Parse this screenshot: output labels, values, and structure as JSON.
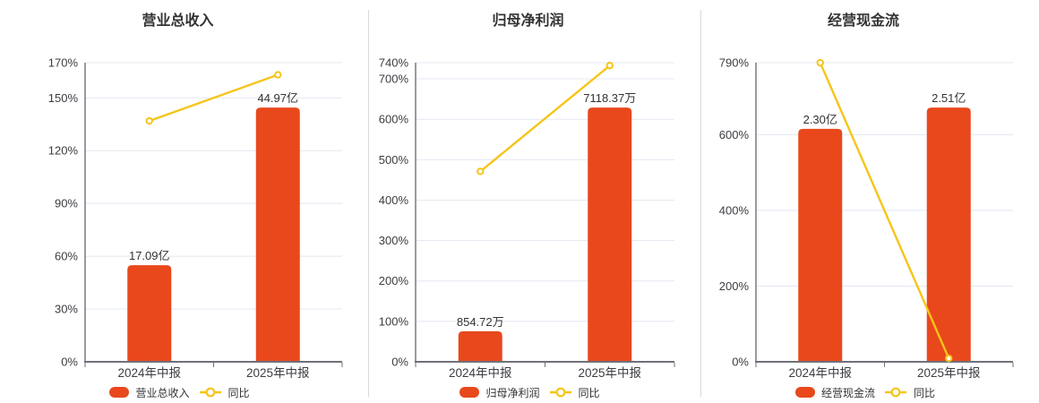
{
  "colors": {
    "bar": "#e8481c",
    "line": "#f5c518",
    "grid": "#e3e8f0",
    "axis": "#70707a",
    "tick_text": "#3c3c42",
    "label_text": "#333333",
    "title_text": "#333333",
    "divider": "#d9d9d9",
    "marker_fill": "#ffffff"
  },
  "chart_data": [
    {
      "type": "bar",
      "title": "营业总收入",
      "categories": [
        "2024年中报",
        "2025年中报"
      ],
      "bars": {
        "name": "营业总收入",
        "values": [
          17.09,
          44.97
        ],
        "labels": [
          "17.09亿",
          "44.97亿"
        ],
        "unit": "亿",
        "color": "#e8481c"
      },
      "line": {
        "name": "同比",
        "values": [
          136.9,
          163.1
        ],
        "unit": "%",
        "color": "#f5c518"
      },
      "y_axis": {
        "tick_values": [
          0,
          30,
          60,
          90,
          120,
          150,
          170
        ],
        "unit": "%",
        "min": 0,
        "max": 170
      },
      "legend": [
        "营业总收入",
        "同比"
      ],
      "grid_on": true,
      "legend_position": "bottom"
    },
    {
      "type": "bar",
      "title": "归母净利润",
      "categories": [
        "2024年中报",
        "2025年中报"
      ],
      "bars": {
        "name": "归母净利润",
        "values": [
          854.72,
          7118.37
        ],
        "labels": [
          "854.72万",
          "7118.37万"
        ],
        "unit": "万",
        "color": "#e8481c"
      },
      "line": {
        "name": "同比",
        "values": [
          471.0,
          732.8
        ],
        "unit": "%",
        "color": "#f5c518"
      },
      "y_axis": {
        "tick_values": [
          0,
          100,
          200,
          300,
          400,
          500,
          600,
          700,
          740
        ],
        "unit": "%",
        "min": 0,
        "max": 740
      },
      "legend": [
        "归母净利润",
        "同比"
      ],
      "grid_on": true,
      "legend_position": "bottom"
    },
    {
      "type": "bar",
      "title": "经营现金流",
      "categories": [
        "2024年中报",
        "2025年中报"
      ],
      "bars": {
        "name": "经营现金流",
        "values": [
          2.3,
          2.51
        ],
        "labels": [
          "2.30亿",
          "2.51亿"
        ],
        "unit": "亿",
        "color": "#e8481c"
      },
      "line": {
        "name": "同比",
        "values": [
          789.9,
          9.1
        ],
        "unit": "%",
        "color": "#f5c518"
      },
      "y_axis": {
        "tick_values": [
          0,
          200,
          400,
          600,
          790
        ],
        "unit": "%",
        "min": 0,
        "max": 790
      },
      "legend": [
        "经营现金流",
        "同比"
      ],
      "grid_on": true,
      "legend_position": "bottom"
    }
  ]
}
